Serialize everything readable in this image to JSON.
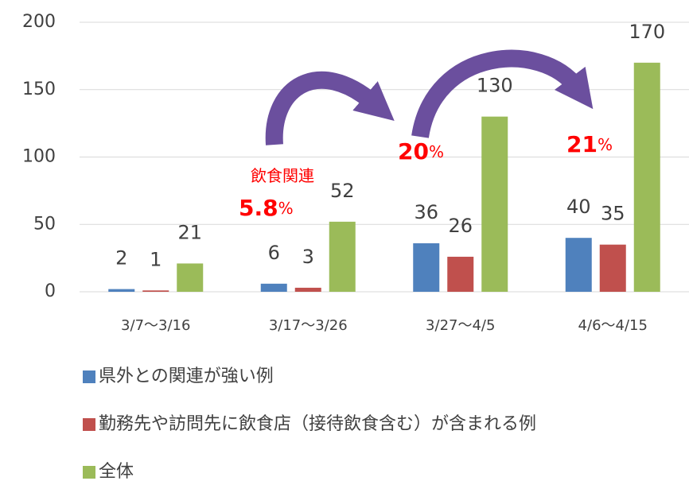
{
  "chart_data": {
    "type": "bar",
    "categories": [
      "3/7〜3/16",
      "3/17〜3/26",
      "3/27〜4/5",
      "4/6〜4/15"
    ],
    "series": [
      {
        "name": "県外との関連が強い例",
        "color": "#4f81bd",
        "values": [
          2,
          6,
          36,
          40
        ]
      },
      {
        "name": "勤務先や訪問先に飲食店（接待飲食含む）が含まれる例",
        "color": "#c0504d",
        "values": [
          1,
          3,
          26,
          35
        ]
      },
      {
        "name": "全体",
        "color": "#9bbb59",
        "values": [
          21,
          52,
          130,
          170
        ]
      }
    ],
    "ylim": [
      0,
      200
    ],
    "yticks": [
      0,
      50,
      100,
      150,
      200
    ],
    "grid": true,
    "annotations": [
      {
        "text": "飲食関連"
      },
      {
        "text": "5.8",
        "suffix": "%"
      },
      {
        "text": "20",
        "suffix": "%"
      },
      {
        "text": "21",
        "suffix": "%"
      }
    ]
  }
}
